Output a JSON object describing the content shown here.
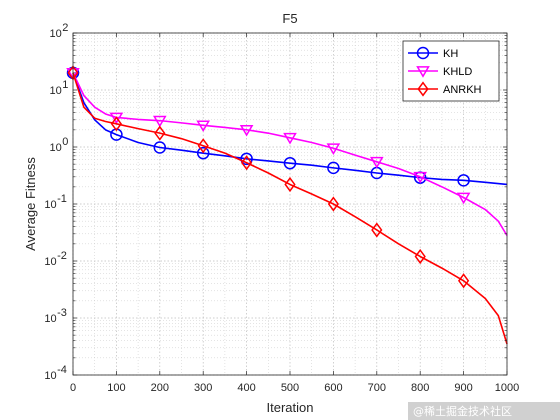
{
  "chart_data": {
    "type": "line",
    "title": "F5",
    "xlabel": "Iteration",
    "ylabel": "Average Fitness",
    "xlim": [
      0,
      1000
    ],
    "ylim": [
      0.0001,
      100
    ],
    "y_scale": "log",
    "grid": true,
    "minor_grid": true,
    "legend_position": "top-right",
    "x_ticks": [
      "0",
      "100",
      "200",
      "300",
      "400",
      "500",
      "600",
      "700",
      "800",
      "900",
      "1000"
    ],
    "y_ticks": [
      {
        "base": "10",
        "exp": "-4"
      },
      {
        "base": "10",
        "exp": "-3"
      },
      {
        "base": "10",
        "exp": "-2"
      },
      {
        "base": "10",
        "exp": "-1"
      },
      {
        "base": "10",
        "exp": "0"
      },
      {
        "base": "10",
        "exp": "1"
      },
      {
        "base": "10",
        "exp": "2"
      }
    ],
    "series": [
      {
        "name": "KH",
        "color": "#0000ff",
        "marker": "circle",
        "x": [
          0,
          25,
          50,
          75,
          100,
          150,
          200,
          250,
          300,
          350,
          400,
          450,
          500,
          550,
          600,
          650,
          700,
          750,
          800,
          850,
          900,
          950,
          1000
        ],
        "y": [
          20,
          6.0,
          3.0,
          2.0,
          1.65,
          1.2,
          0.98,
          0.88,
          0.78,
          0.7,
          0.62,
          0.57,
          0.52,
          0.48,
          0.43,
          0.39,
          0.35,
          0.32,
          0.29,
          0.27,
          0.26,
          0.24,
          0.22
        ],
        "marker_x": [
          0,
          100,
          200,
          300,
          400,
          500,
          600,
          700,
          800,
          900
        ],
        "marker_y": [
          20,
          1.65,
          0.98,
          0.78,
          0.62,
          0.52,
          0.43,
          0.35,
          0.29,
          0.26
        ]
      },
      {
        "name": "KHLD",
        "color": "#ff00ff",
        "marker": "triangle-down",
        "x": [
          0,
          25,
          50,
          75,
          100,
          150,
          200,
          250,
          300,
          350,
          400,
          450,
          500,
          550,
          600,
          650,
          700,
          750,
          800,
          850,
          900,
          950,
          980,
          1000
        ],
        "y": [
          20,
          8.0,
          5.0,
          3.8,
          3.3,
          3.05,
          2.9,
          2.65,
          2.4,
          2.2,
          2.0,
          1.75,
          1.45,
          1.2,
          0.95,
          0.72,
          0.55,
          0.42,
          0.3,
          0.2,
          0.13,
          0.08,
          0.05,
          0.028
        ],
        "marker_x": [
          0,
          100,
          200,
          300,
          400,
          500,
          600,
          700,
          800,
          900
        ],
        "marker_y": [
          20,
          3.3,
          2.9,
          2.4,
          2.0,
          1.45,
          0.95,
          0.55,
          0.3,
          0.13
        ]
      },
      {
        "name": "ANRKH",
        "color": "#ff0000",
        "marker": "diamond",
        "x": [
          0,
          25,
          50,
          75,
          100,
          150,
          200,
          250,
          300,
          350,
          400,
          450,
          500,
          550,
          600,
          650,
          700,
          750,
          800,
          850,
          900,
          950,
          980,
          1000
        ],
        "y": [
          20,
          5.0,
          3.2,
          2.8,
          2.55,
          2.1,
          1.75,
          1.4,
          1.05,
          0.78,
          0.53,
          0.35,
          0.22,
          0.15,
          0.1,
          0.06,
          0.035,
          0.02,
          0.012,
          0.0075,
          0.0045,
          0.0022,
          0.0011,
          0.00035
        ],
        "marker_x": [
          0,
          100,
          200,
          300,
          400,
          500,
          600,
          700,
          800,
          900
        ],
        "marker_y": [
          20,
          2.55,
          1.75,
          1.05,
          0.53,
          0.22,
          0.1,
          0.035,
          0.012,
          0.0045
        ]
      }
    ]
  },
  "watermark": "@稀土掘金技术社区"
}
